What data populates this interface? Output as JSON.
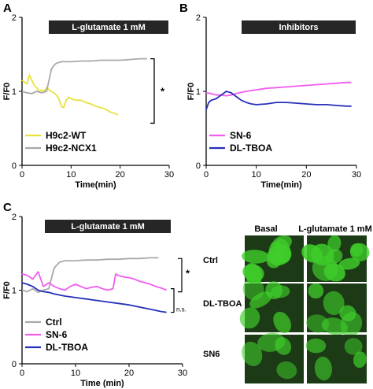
{
  "figure": {
    "colors": {
      "yellow": "#e8e23a",
      "gray": "#a9a9a9",
      "magenta": "#f25cf0",
      "blue": "#2630b8",
      "banner": "#262626",
      "cell_green": "#3fce2a",
      "cell_bg": "#1d3a17"
    }
  },
  "chart_data": [
    {
      "panel": "A",
      "type": "line",
      "title": "L-glutamate 1 mM",
      "xlabel": "Time(min)",
      "ylabel": "F/F0",
      "xlim": [
        0,
        30
      ],
      "ylim": [
        0,
        2
      ],
      "xticks": [
        "0",
        "10",
        "20",
        "30"
      ],
      "yticks": [
        "0",
        "1",
        "2"
      ],
      "grid": false,
      "legend_position": "bottom-left",
      "significance": "*",
      "series": [
        {
          "name": "H9c2-WT",
          "color": "#e8e23a",
          "x": [
            0,
            1,
            1.5,
            2,
            2.5,
            3,
            3.5,
            4,
            4.5,
            5,
            5.5,
            6,
            6.5,
            7,
            7.5,
            8,
            8.5,
            9,
            9.5,
            10,
            11,
            12,
            13,
            14,
            15,
            16,
            17,
            18,
            19,
            19.5
          ],
          "y": [
            1.15,
            1.1,
            1.22,
            1.15,
            1.08,
            1.05,
            1.0,
            1.02,
            1.0,
            1.05,
            1.02,
            1.0,
            0.98,
            0.95,
            0.9,
            0.8,
            0.78,
            0.88,
            0.92,
            0.9,
            0.88,
            0.88,
            0.85,
            0.83,
            0.8,
            0.78,
            0.76,
            0.72,
            0.7,
            0.68
          ]
        },
        {
          "name": "H9c2-NCX1",
          "color": "#a9a9a9",
          "x": [
            0,
            1,
            2,
            3,
            4,
            5,
            5.5,
            6,
            6.5,
            7,
            8,
            10,
            12,
            14,
            16,
            18,
            20,
            22,
            24,
            25.5
          ],
          "y": [
            1.0,
            0.98,
            0.97,
            1.0,
            0.98,
            1.0,
            1.15,
            1.3,
            1.35,
            1.38,
            1.4,
            1.4,
            1.41,
            1.41,
            1.42,
            1.42,
            1.42,
            1.43,
            1.44,
            1.44
          ]
        }
      ]
    },
    {
      "panel": "B",
      "type": "line",
      "title": "Inhibitors",
      "xlabel": "Time(min)",
      "ylabel": "F/F0",
      "xlim": [
        0,
        30
      ],
      "ylim": [
        0,
        2
      ],
      "xticks": [
        "0",
        "10",
        "20",
        "30"
      ],
      "yticks": [
        "0",
        "1",
        "2"
      ],
      "grid": false,
      "legend_position": "bottom-left",
      "series": [
        {
          "name": "SN-6",
          "color": "#f25cf0",
          "x": [
            0,
            1,
            2,
            3,
            4,
            5,
            6,
            8,
            10,
            12,
            14,
            16,
            18,
            20,
            22,
            24,
            26,
            28,
            29
          ],
          "y": [
            0.98,
            0.97,
            0.95,
            0.95,
            0.94,
            0.95,
            0.97,
            1.0,
            1.02,
            1.04,
            1.05,
            1.06,
            1.07,
            1.08,
            1.09,
            1.1,
            1.11,
            1.12,
            1.12
          ]
        },
        {
          "name": "DL-TBOA",
          "color": "#2630b8",
          "x": [
            0,
            0.5,
            1,
            2,
            3,
            4,
            5,
            6,
            7,
            8,
            9,
            10,
            12,
            14,
            16,
            18,
            20,
            22,
            24,
            26,
            28,
            29
          ],
          "y": [
            0.75,
            0.85,
            0.88,
            0.9,
            0.95,
            1.0,
            0.98,
            0.93,
            0.88,
            0.85,
            0.83,
            0.82,
            0.83,
            0.85,
            0.85,
            0.84,
            0.83,
            0.82,
            0.82,
            0.81,
            0.8,
            0.8
          ]
        }
      ]
    },
    {
      "panel": "C",
      "type": "line",
      "title": "L-glutamate 1 mM",
      "xlabel": "Time (min)",
      "ylabel": "F/F0",
      "xlim": [
        0,
        30
      ],
      "ylim": [
        0,
        2
      ],
      "xticks": [
        "0",
        "10",
        "20",
        "30"
      ],
      "yticks": [
        "0",
        "1",
        "2"
      ],
      "grid": false,
      "legend_position": "bottom-left",
      "significance": [
        "*",
        "n.s."
      ],
      "series": [
        {
          "name": "Ctrl",
          "color": "#a9a9a9",
          "x": [
            0,
            1,
            2,
            3,
            4,
            5,
            6,
            7,
            8,
            10,
            12,
            14,
            16,
            18,
            20,
            22,
            24,
            25.5
          ],
          "y": [
            1.0,
            0.98,
            1.02,
            0.97,
            1.0,
            1.02,
            1.3,
            1.38,
            1.4,
            1.4,
            1.41,
            1.41,
            1.42,
            1.42,
            1.43,
            1.43,
            1.44,
            1.44
          ]
        },
        {
          "name": "SN-6",
          "color": "#f25cf0",
          "x": [
            0,
            1,
            2,
            3,
            4,
            5,
            6,
            7,
            8,
            9,
            10,
            11,
            12,
            13,
            14,
            15,
            16,
            17,
            17.5,
            18,
            19,
            20,
            21,
            22,
            23,
            24,
            25,
            26,
            27
          ],
          "y": [
            1.22,
            1.2,
            1.15,
            1.25,
            1.05,
            1.1,
            1.05,
            1.02,
            1.0,
            1.05,
            1.08,
            1.05,
            1.02,
            1.04,
            1.05,
            1.02,
            1.0,
            1.02,
            1.22,
            1.2,
            1.18,
            1.17,
            1.15,
            1.12,
            1.1,
            1.08,
            1.05,
            1.03,
            1.0
          ]
        },
        {
          "name": "DL-TBOA",
          "color": "#2630b8",
          "x": [
            0,
            1,
            2,
            3,
            4,
            5,
            6,
            8,
            10,
            12,
            14,
            16,
            18,
            20,
            22,
            24,
            26,
            27
          ],
          "y": [
            1.1,
            1.08,
            1.05,
            1.0,
            0.98,
            0.97,
            0.95,
            0.92,
            0.9,
            0.88,
            0.86,
            0.84,
            0.82,
            0.8,
            0.77,
            0.74,
            0.71,
            0.7
          ]
        }
      ]
    }
  ],
  "micrographs": {
    "columns": [
      "Basal",
      "L-glutamate 1 mM"
    ],
    "rows": [
      "Ctrl",
      "DL-TBOA",
      "SN6"
    ]
  }
}
